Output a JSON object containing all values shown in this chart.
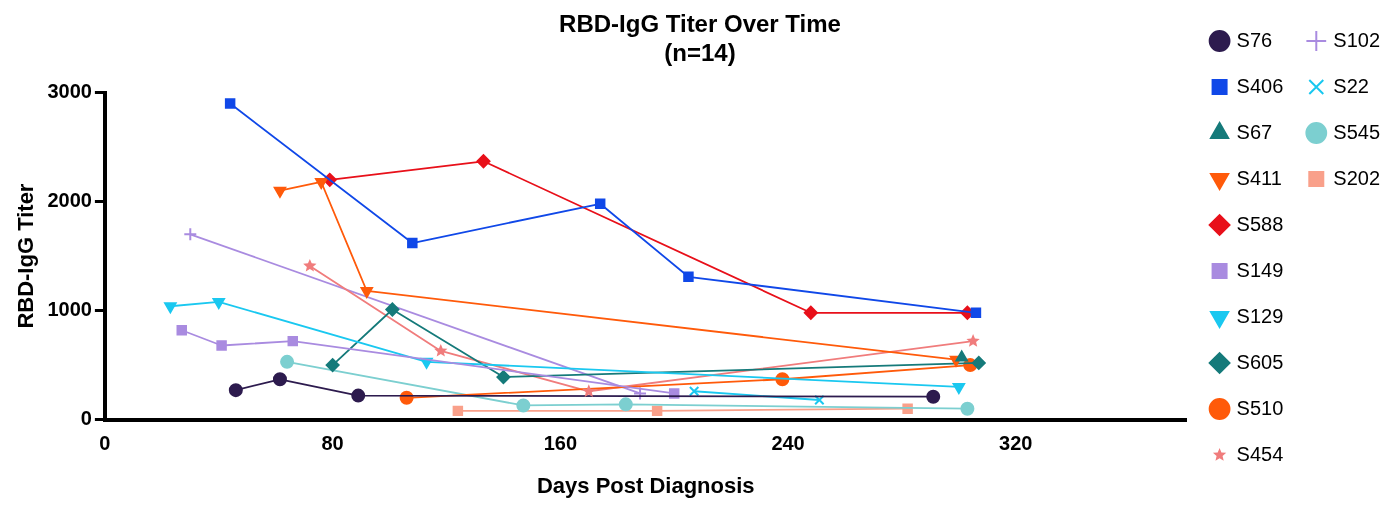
{
  "chart_data": {
    "type": "line",
    "title": "RBD-IgG Titer Over Time",
    "subtitle": "(n=14)",
    "xlabel": "Days Post Diagnosis",
    "ylabel": "RBD-IgG Titer",
    "xlim": [
      0,
      380
    ],
    "xticks": [
      0,
      80,
      160,
      240,
      320
    ],
    "ylim": [
      0,
      3000
    ],
    "yticks": [
      0,
      1000,
      2000,
      3000
    ],
    "grid": false,
    "legend": "right",
    "line_style": "solid",
    "series": [
      {
        "name": "S76",
        "color": "#2d1b4e",
        "marker": "circle",
        "x": [
          46,
          61.5,
          89,
          291
        ],
        "values": [
          270,
          370,
          220,
          210
        ]
      },
      {
        "name": "S406",
        "color": "#1048e8",
        "marker": "square",
        "x": [
          44,
          108,
          174,
          205,
          306
        ],
        "values": [
          2900,
          1620,
          1980,
          1310,
          980
        ]
      },
      {
        "name": "S67",
        "color": "#157a7a",
        "marker": "triangle",
        "x": [
          301
        ],
        "values": [
          570
        ]
      },
      {
        "name": "S411",
        "color": "#ff5a0a",
        "marker": "triangle-down",
        "x": [
          61.5,
          76,
          92,
          299
        ],
        "values": [
          2100,
          2180,
          1180,
          550
        ]
      },
      {
        "name": "S588",
        "color": "#e8101a",
        "marker": "diamond",
        "x": [
          79,
          133,
          248,
          303
        ],
        "values": [
          2200,
          2370,
          980,
          980
        ]
      },
      {
        "name": "S149",
        "color": "#a98be0",
        "marker": "square",
        "x": [
          27,
          41,
          66,
          200
        ],
        "values": [
          820,
          680,
          720,
          240
        ]
      },
      {
        "name": "S129",
        "color": "#1ac8f0",
        "marker": "triangle-down",
        "x": [
          23,
          40,
          113,
          300
        ],
        "values": [
          1040,
          1080,
          530,
          300
        ]
      },
      {
        "name": "S605",
        "color": "#157a7a",
        "marker": "diamond",
        "x": [
          80,
          101,
          140,
          307
        ],
        "values": [
          500,
          1010,
          390,
          520
        ]
      },
      {
        "name": "S510",
        "color": "#ff5a0a",
        "marker": "circle",
        "x": [
          106,
          238,
          304
        ],
        "values": [
          200,
          370,
          500
        ]
      },
      {
        "name": "S454",
        "color": "#f07c7c",
        "marker": "star",
        "x": [
          72,
          118,
          170,
          305
        ],
        "values": [
          1410,
          630,
          260,
          720
        ]
      },
      {
        "name": "S102",
        "color": "#a98be0",
        "marker": "plus",
        "x": [
          30,
          188
        ],
        "values": [
          1700,
          240
        ]
      },
      {
        "name": "S22",
        "color": "#1ac8f0",
        "marker": "cross",
        "x": [
          207,
          251
        ],
        "values": [
          260,
          180
        ]
      },
      {
        "name": "S545",
        "color": "#7ccfd0",
        "marker": "circle",
        "x": [
          64,
          147,
          183,
          303
        ],
        "values": [
          530,
          130,
          140,
          100
        ]
      },
      {
        "name": "S202",
        "color": "#f9a08a",
        "marker": "square",
        "x": [
          124,
          194,
          282
        ],
        "values": [
          80,
          80,
          100
        ]
      }
    ]
  }
}
